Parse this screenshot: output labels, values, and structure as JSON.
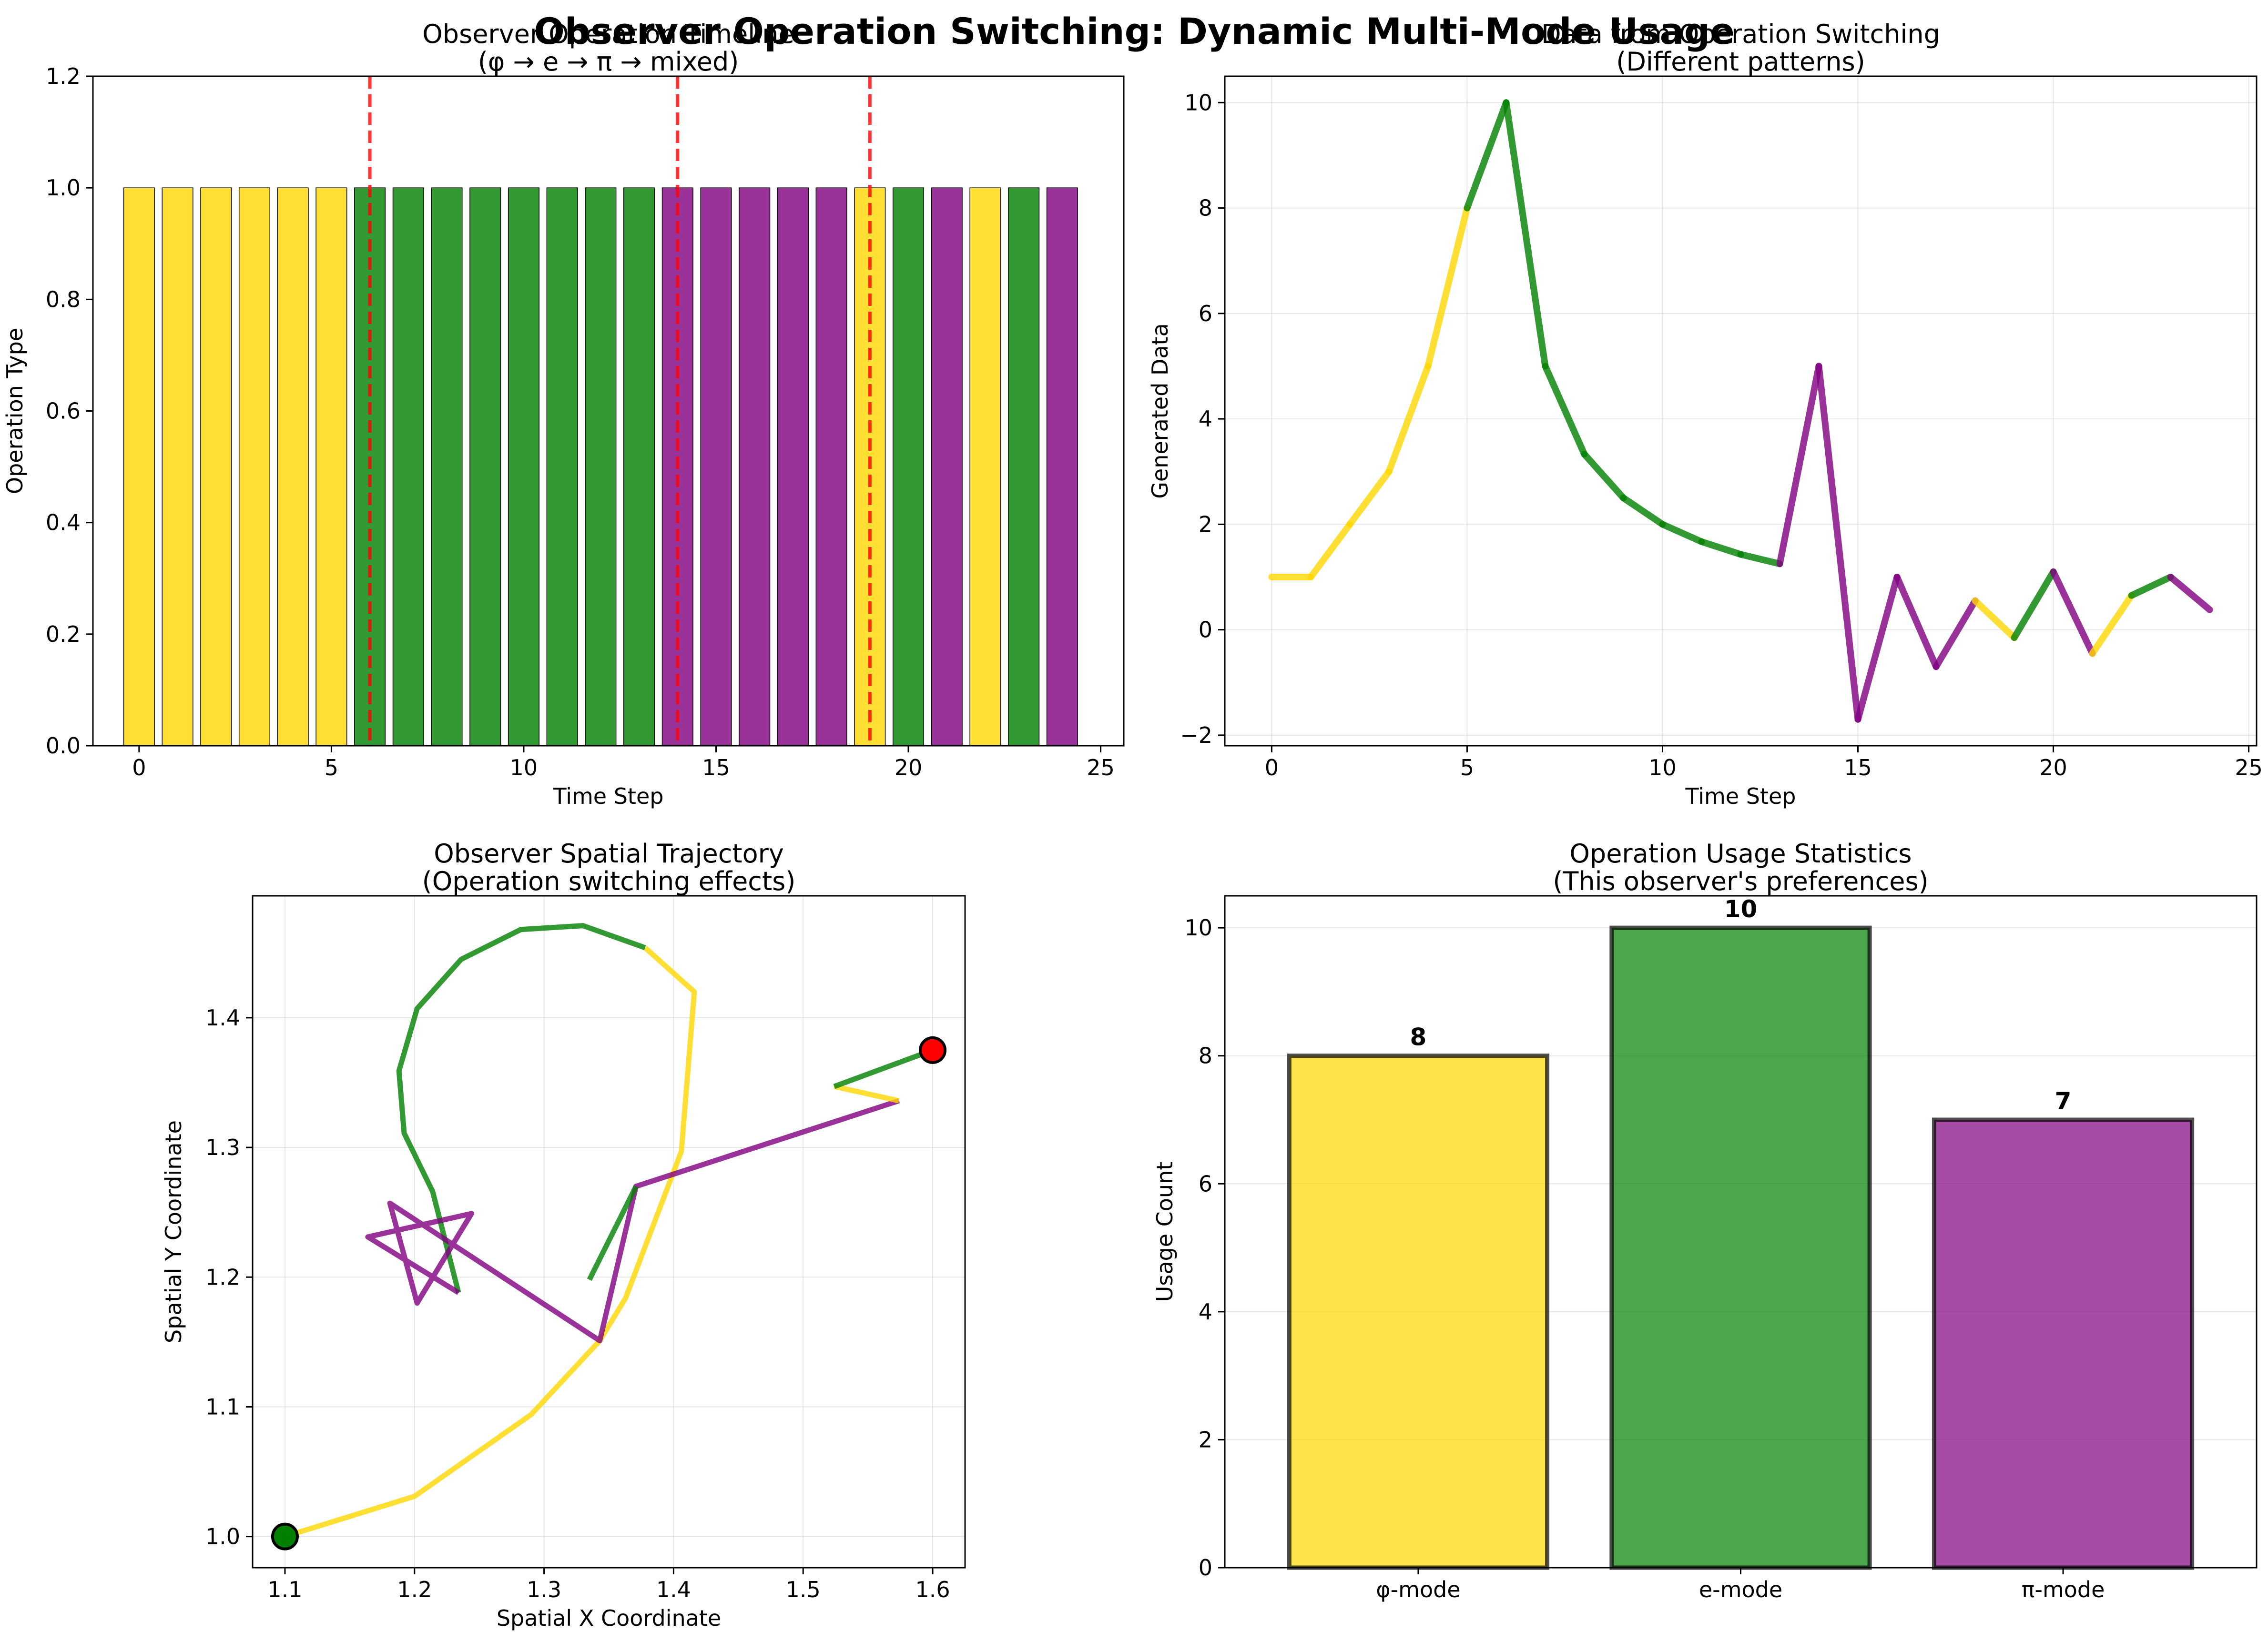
{
  "figure": {
    "title": "Observer Operation Switching: Dynamic Multi-Mode Usage"
  },
  "colors": {
    "phi": "#FFD700",
    "e": "#008000",
    "pi": "#800080",
    "switch_line": "#FF0000",
    "start_marker": "#008000",
    "end_marker": "#FF0000"
  },
  "chart_data": [
    {
      "id": "timeline",
      "type": "bar",
      "title": "Observer Operation Timeline",
      "subtitle": "(φ → e → π → mixed)",
      "xlabel": "Time Step",
      "ylabel": "Operation Type",
      "xlim": [
        -1.2,
        25.6
      ],
      "ylim": [
        0,
        1.2
      ],
      "xticks": [
        0,
        5,
        10,
        15,
        20,
        25
      ],
      "yticks": [
        0.0,
        0.2,
        0.4,
        0.6,
        0.8,
        1.0,
        1.2
      ],
      "x": [
        0,
        1,
        2,
        3,
        4,
        5,
        6,
        7,
        8,
        9,
        10,
        11,
        12,
        13,
        14,
        15,
        16,
        17,
        18,
        19,
        20,
        21,
        22,
        23,
        24
      ],
      "values": [
        1,
        1,
        1,
        1,
        1,
        1,
        1,
        1,
        1,
        1,
        1,
        1,
        1,
        1,
        1,
        1,
        1,
        1,
        1,
        1,
        1,
        1,
        1,
        1,
        1
      ],
      "modes": [
        "phi",
        "phi",
        "phi",
        "phi",
        "phi",
        "phi",
        "e",
        "e",
        "e",
        "e",
        "e",
        "e",
        "e",
        "e",
        "pi",
        "pi",
        "pi",
        "pi",
        "pi",
        "phi",
        "e",
        "pi",
        "phi",
        "e",
        "pi"
      ],
      "switch_lines": [
        6,
        14,
        19
      ],
      "grid": false
    },
    {
      "id": "generated",
      "type": "line",
      "title": "Data from Operation Switching",
      "subtitle": "(Different patterns)",
      "xlabel": "Time Step",
      "ylabel": "Generated Data",
      "xlim": [
        -1.2,
        25.2
      ],
      "ylim": [
        -2.2,
        10.5
      ],
      "xticks": [
        0,
        5,
        10,
        15,
        20,
        25
      ],
      "yticks": [
        -2,
        0,
        2,
        4,
        6,
        8,
        10
      ],
      "x": [
        0,
        1,
        2,
        3,
        4,
        5,
        6,
        7,
        8,
        9,
        10,
        11,
        12,
        13,
        14,
        15,
        16,
        17,
        18,
        19,
        20,
        21,
        22,
        23,
        24
      ],
      "y": [
        1,
        1,
        2,
        3,
        5,
        8,
        10,
        5,
        3.33,
        2.5,
        2,
        1.67,
        1.43,
        1.25,
        5,
        -1.7,
        1,
        -0.7,
        0.55,
        -0.15,
        1.1,
        -0.45,
        0.65,
        1,
        0.38
      ],
      "modes": [
        "phi",
        "phi",
        "phi",
        "phi",
        "phi",
        "phi",
        "e",
        "e",
        "e",
        "e",
        "e",
        "e",
        "e",
        "e",
        "pi",
        "pi",
        "pi",
        "pi",
        "pi",
        "phi",
        "e",
        "pi",
        "phi",
        "e",
        "pi"
      ],
      "grid": true
    },
    {
      "id": "trajectory",
      "type": "line",
      "title": "Observer Spatial Trajectory",
      "subtitle": "(Operation switching effects)",
      "xlabel": "Spatial X Coordinate",
      "ylabel": "Spatial Y Coordinate",
      "xlim": [
        1.075,
        1.625
      ],
      "ylim": [
        0.976,
        1.494
      ],
      "xticks": [
        1.1,
        1.2,
        1.3,
        1.4,
        1.5,
        1.6
      ],
      "yticks": [
        1.0,
        1.1,
        1.2,
        1.3,
        1.4
      ],
      "segments": [
        {
          "mode": "phi",
          "points": [
            [
              1.1,
              1.0
            ],
            [
              1.2,
              1.031
            ],
            [
              1.29,
              1.094
            ],
            [
              1.343,
              1.151
            ],
            [
              1.363,
              1.184
            ],
            [
              1.406,
              1.297
            ],
            [
              1.416,
              1.42
            ],
            [
              1.378,
              1.454
            ]
          ]
        },
        {
          "mode": "e",
          "points": [
            [
              1.378,
              1.454
            ],
            [
              1.33,
              1.471
            ],
            [
              1.282,
              1.468
            ],
            [
              1.236,
              1.445
            ],
            [
              1.202,
              1.407
            ],
            [
              1.188,
              1.359
            ],
            [
              1.192,
              1.311
            ],
            [
              1.214,
              1.266
            ],
            [
              1.234,
              1.188
            ]
          ]
        },
        {
          "mode": "pi",
          "points": [
            [
              1.234,
              1.188
            ],
            [
              1.164,
              1.231
            ],
            [
              1.244,
              1.249
            ],
            [
              1.202,
              1.18
            ],
            [
              1.181,
              1.257
            ],
            [
              1.343,
              1.151
            ],
            [
              1.371,
              1.27
            ],
            [
              1.574,
              1.336
            ]
          ]
        },
        {
          "mode": "phi",
          "points": [
            [
              1.574,
              1.336
            ],
            [
              1.524,
              1.347
            ]
          ]
        },
        {
          "mode": "e",
          "points": [
            [
              1.524,
              1.347
            ],
            [
              1.6,
              1.375
            ]
          ]
        },
        {
          "mode": "e",
          "points": [
            [
              1.335,
              1.198
            ],
            [
              1.371,
              1.27
            ]
          ]
        }
      ],
      "start": [
        1.1,
        1.0
      ],
      "end": [
        1.6,
        1.375
      ],
      "grid": true
    },
    {
      "id": "usage",
      "type": "bar",
      "title": "Operation Usage Statistics",
      "subtitle": "(This observer's preferences)",
      "xlabel": "",
      "ylabel": "Usage Count",
      "categories": [
        "φ-mode",
        "e-mode",
        "π-mode"
      ],
      "values": [
        8,
        10,
        7
      ],
      "modes": [
        "phi",
        "e",
        "pi"
      ],
      "ylim": [
        0,
        10.5
      ],
      "yticks": [
        0,
        2,
        4,
        6,
        8,
        10
      ],
      "grid": true
    }
  ]
}
